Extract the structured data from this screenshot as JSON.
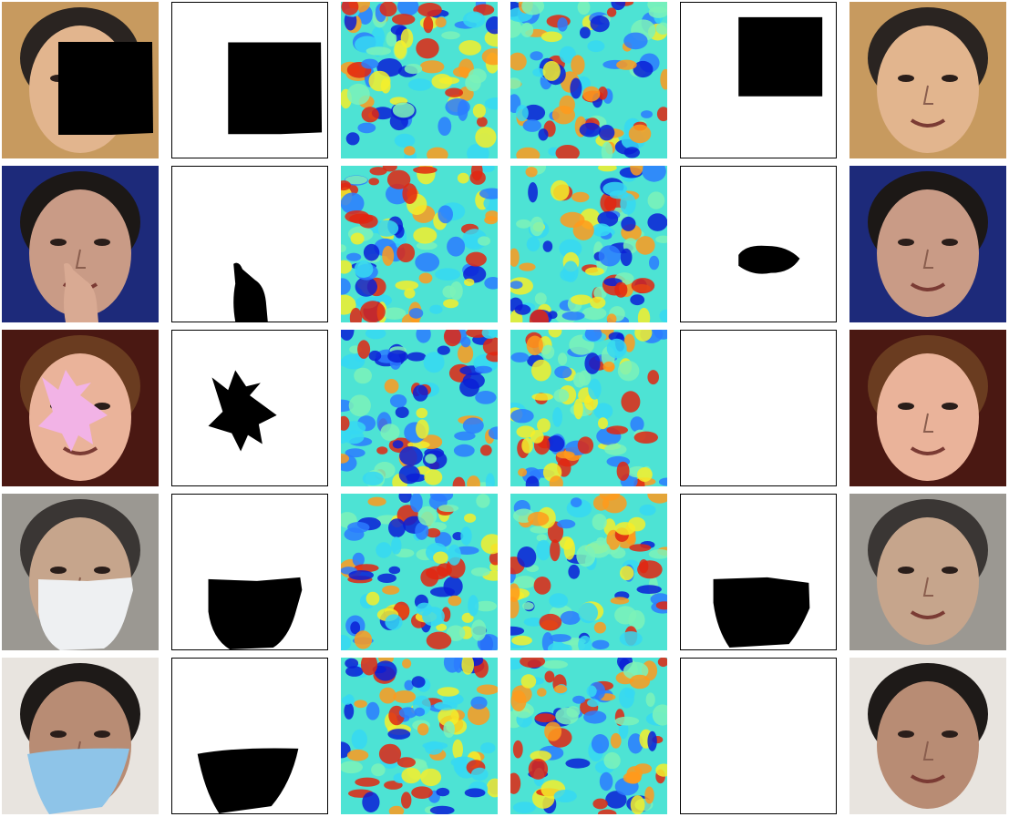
{
  "figure": {
    "columns": [
      "face-input",
      "input-mask",
      "noise-map-a",
      "noise-map-b",
      "predicted-mask",
      "face-output"
    ],
    "rows": [
      {
        "id": "row-1",
        "occlusion": "black-square",
        "skin": "#e2b58e",
        "hair": "#2a2421",
        "bg": "#c79a5f",
        "occluder_color": "#000000",
        "output_empty_mask": false
      },
      {
        "id": "row-2",
        "occlusion": "hand",
        "skin": "#c99b86",
        "hair": "#1c1816",
        "bg": "#1d2a7a",
        "occluder_color": "#d9aa93",
        "output_empty_mask": false
      },
      {
        "id": "row-3",
        "occlusion": "pink-blob",
        "skin": "#eab39a",
        "hair": "#6a3c20",
        "bg": "#4a1812",
        "occluder_color": "#f2b3e6",
        "output_empty_mask": true
      },
      {
        "id": "row-4",
        "occlusion": "white-mask",
        "skin": "#c6a58c",
        "hair": "#3a3634",
        "bg": "#9b9892",
        "occluder_color": "#eef0f2",
        "output_empty_mask": false
      },
      {
        "id": "row-5",
        "occlusion": "blue-mask",
        "skin": "#b88c74",
        "hair": "#1e1a18",
        "bg": "#e8e4df",
        "occluder_color": "#8ec4e8",
        "output_empty_mask": true
      }
    ],
    "noise_palette": [
      "#0a1fd6",
      "#2b7bff",
      "#36d8f2",
      "#7cf2b8",
      "#f4ee2a",
      "#ff9a1c",
      "#e22610"
    ]
  }
}
